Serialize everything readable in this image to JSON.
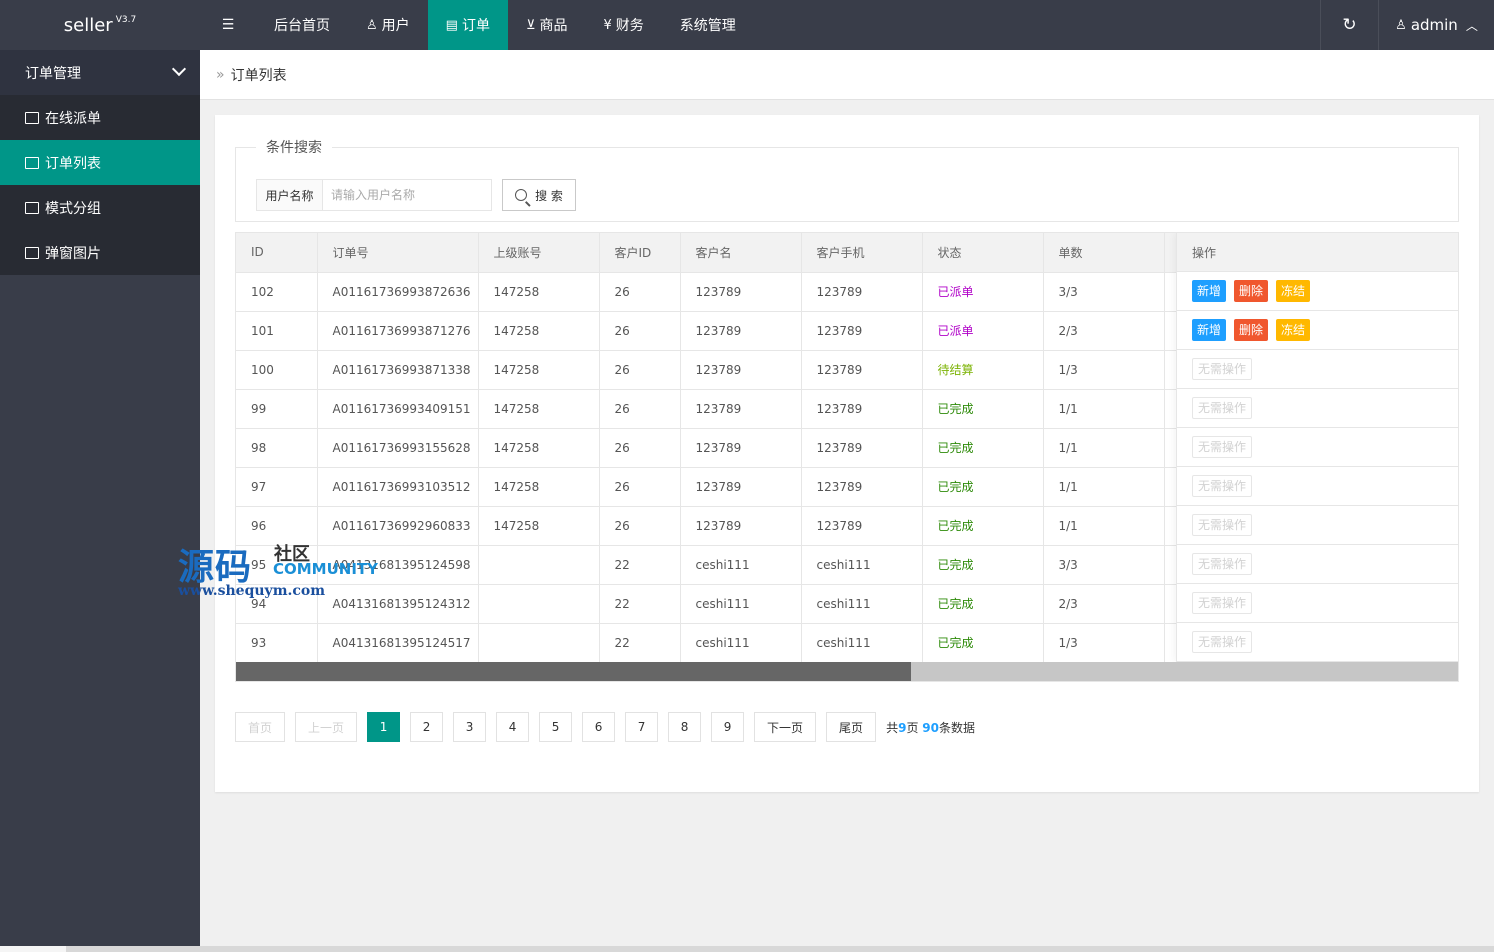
{
  "app": {
    "name": "seller",
    "version": "V3.7"
  },
  "topnav": {
    "items": [
      {
        "label": "后台首页",
        "icon": "none"
      },
      {
        "label": "用户",
        "icon": "user-icon"
      },
      {
        "label": "订单",
        "icon": "document-icon",
        "active": true
      },
      {
        "label": "商品",
        "icon": "cart-icon"
      },
      {
        "label": "财务",
        "icon": "yen-icon"
      },
      {
        "label": "系统管理",
        "icon": "none"
      }
    ],
    "user": "admin"
  },
  "sidebar": {
    "group": "订单管理",
    "items": [
      {
        "label": "在线派单",
        "icon": "note-icon"
      },
      {
        "label": "订单列表",
        "icon": "list-icon",
        "active": true
      },
      {
        "label": "模式分组",
        "icon": "group-icon"
      },
      {
        "label": "弹窗图片",
        "icon": "image-icon"
      }
    ]
  },
  "breadcrumb": "订单列表",
  "search": {
    "legend": "条件搜索",
    "label": "用户名称",
    "placeholder": "请输入用户名称",
    "button": "搜 索"
  },
  "table": {
    "columns": [
      "ID",
      "订单号",
      "上级账号",
      "客户ID",
      "客户名",
      "客户手机",
      "状态",
      "单数"
    ],
    "action_header": "操作",
    "actions": {
      "add": "新增",
      "delete": "删除",
      "freeze": "冻结",
      "none": "无需操作"
    },
    "rows": [
      {
        "id": "102",
        "order_no": "A01161736993872636",
        "parent": "147258",
        "cid": "26",
        "cname": "123789",
        "phone": "123789",
        "status": "已派单",
        "count": "3/3",
        "actionable": true
      },
      {
        "id": "101",
        "order_no": "A01161736993871276",
        "parent": "147258",
        "cid": "26",
        "cname": "123789",
        "phone": "123789",
        "status": "已派单",
        "count": "2/3",
        "actionable": true
      },
      {
        "id": "100",
        "order_no": "A01161736993871338",
        "parent": "147258",
        "cid": "26",
        "cname": "123789",
        "phone": "123789",
        "status": "待结算",
        "count": "1/3",
        "actionable": false
      },
      {
        "id": "99",
        "order_no": "A01161736993409151",
        "parent": "147258",
        "cid": "26",
        "cname": "123789",
        "phone": "123789",
        "status": "已完成",
        "count": "1/1",
        "actionable": false
      },
      {
        "id": "98",
        "order_no": "A01161736993155628",
        "parent": "147258",
        "cid": "26",
        "cname": "123789",
        "phone": "123789",
        "status": "已完成",
        "count": "1/1",
        "actionable": false
      },
      {
        "id": "97",
        "order_no": "A01161736993103512",
        "parent": "147258",
        "cid": "26",
        "cname": "123789",
        "phone": "123789",
        "status": "已完成",
        "count": "1/1",
        "actionable": false
      },
      {
        "id": "96",
        "order_no": "A01161736992960833",
        "parent": "147258",
        "cid": "26",
        "cname": "123789",
        "phone": "123789",
        "status": "已完成",
        "count": "1/1",
        "actionable": false
      },
      {
        "id": "95",
        "order_no": "A04131681395124598",
        "parent": "",
        "cid": "22",
        "cname": "ceshi111",
        "phone": "ceshi111",
        "status": "已完成",
        "count": "3/3",
        "actionable": false
      },
      {
        "id": "94",
        "order_no": "A04131681395124312",
        "parent": "",
        "cid": "22",
        "cname": "ceshi111",
        "phone": "ceshi111",
        "status": "已完成",
        "count": "2/3",
        "actionable": false
      },
      {
        "id": "93",
        "order_no": "A04131681395124517",
        "parent": "",
        "cid": "22",
        "cname": "ceshi111",
        "phone": "ceshi111",
        "status": "已完成",
        "count": "1/3",
        "actionable": false
      }
    ],
    "status_colors": {
      "已派单": "#b000c8",
      "待结算": "#7cb305",
      "已完成": "#2e8b0a"
    }
  },
  "pagination": {
    "first": "首页",
    "prev": "上一页",
    "pages": [
      "1",
      "2",
      "3",
      "4",
      "5",
      "6",
      "7",
      "8",
      "9"
    ],
    "current": "1",
    "next": "下一页",
    "last": "尾页",
    "info_prefix": "共",
    "total_pages": "9",
    "info_mid": "页",
    "total_records": "90",
    "info_suffix": "条数据"
  },
  "watermark": {
    "big": "源码",
    "cn": "社区",
    "en": "COMMUNITY",
    "url": "www.shequym.com"
  },
  "colors": {
    "primary": "#009688",
    "header": "#393d49",
    "blue": "#1e9fff",
    "red": "#f0572e",
    "yellow": "#ffb800"
  }
}
